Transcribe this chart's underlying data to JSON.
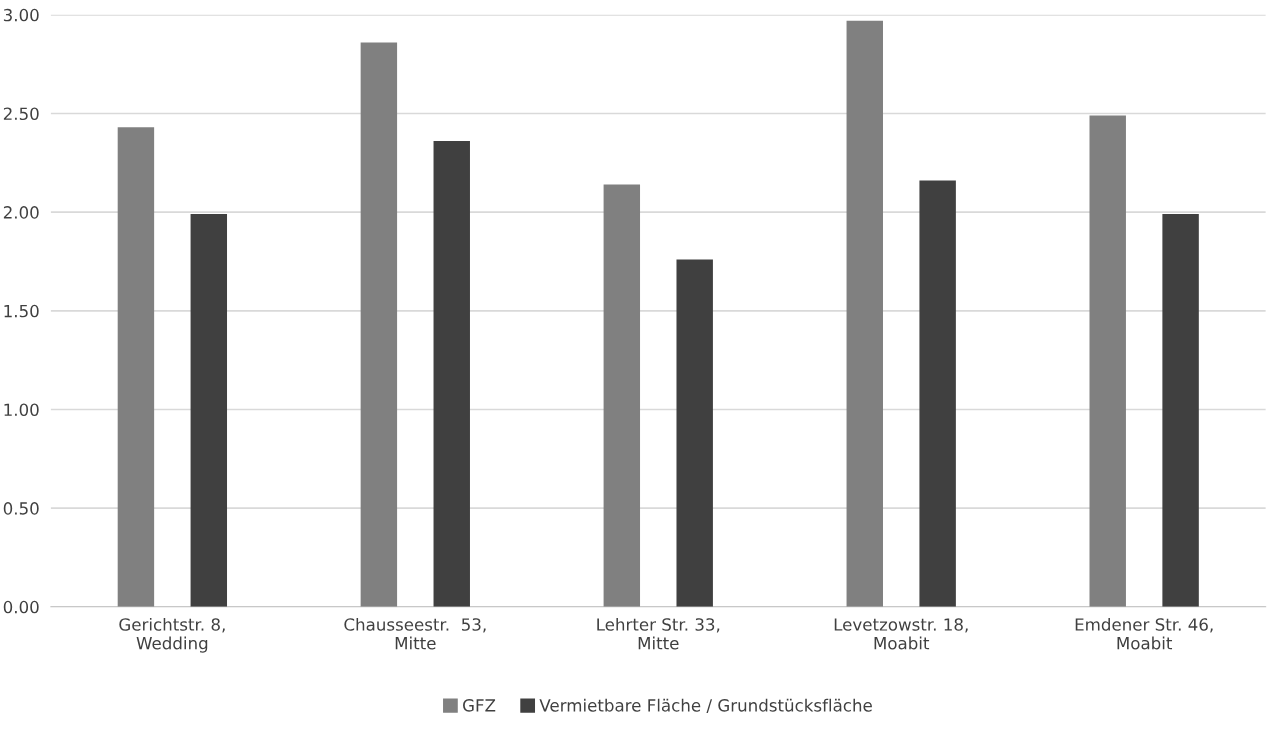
{
  "chart_data": {
    "type": "bar",
    "categories": [
      "Gerichtstr. 8,\nWedding",
      "Chausseestr.  53,\nMitte",
      "Lehrter Str. 33,\nMitte",
      "Levetzowstr. 18,\nMoabit",
      "Emdener Str. 46,\nMoabit"
    ],
    "series": [
      {
        "name": "GFZ",
        "color": "#808080",
        "values": [
          2.43,
          2.86,
          2.14,
          2.97,
          2.49
        ]
      },
      {
        "name": "Vermietbare Fläche / Grundstücksfläche",
        "color": "#404040",
        "values": [
          1.99,
          2.36,
          1.76,
          2.16,
          1.99
        ]
      }
    ],
    "ylim": [
      0,
      3
    ],
    "yticks": [
      {
        "value": 0,
        "label": "0.00"
      },
      {
        "value": 0.5,
        "label": "0.50"
      },
      {
        "value": 1,
        "label": "1.00"
      },
      {
        "value": 1.5,
        "label": "1.50"
      },
      {
        "value": 2,
        "label": "2.00"
      },
      {
        "value": 2.5,
        "label": "2.50"
      },
      {
        "value": 3,
        "label": "3.00"
      }
    ],
    "grid": "y",
    "legend": "bottom"
  }
}
